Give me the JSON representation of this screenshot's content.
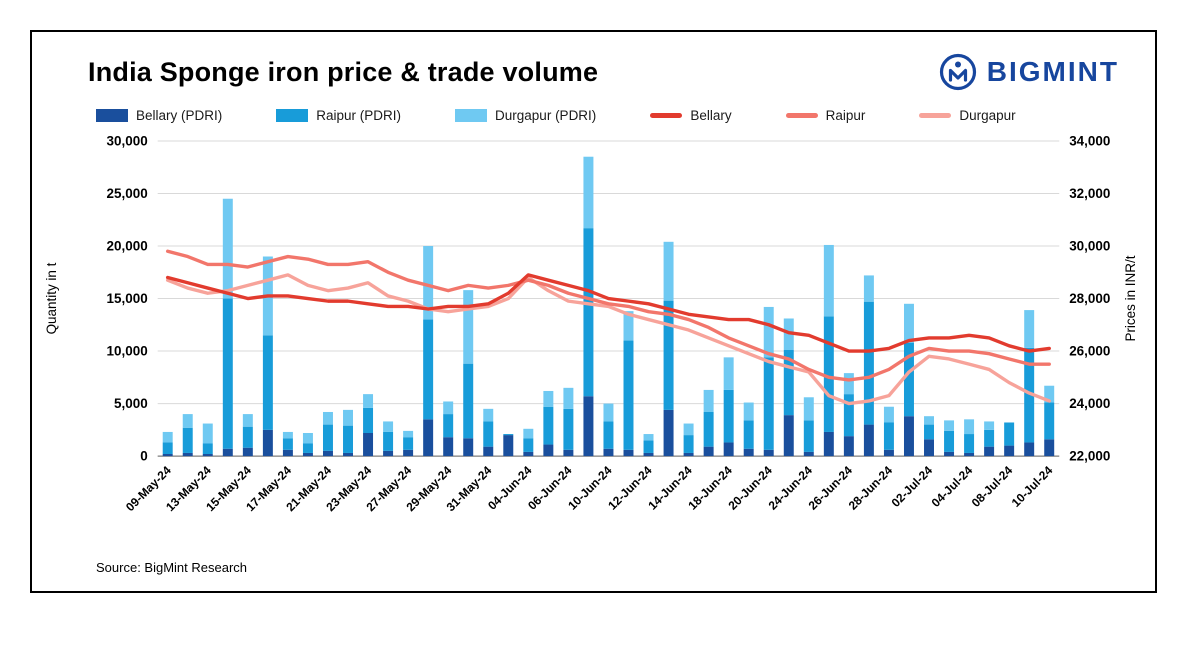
{
  "header": {
    "title": "India Sponge iron price & trade volume",
    "brand": "BIGMINT"
  },
  "source": "Source: BigMint Research",
  "brand_color": "#17469E",
  "chart_data": {
    "type": "combo (stacked bar + line)",
    "title": "India Sponge iron price & trade volume",
    "grid": true,
    "legend_position": "top",
    "categories": [
      "09-May-24",
      "10-May-24",
      "13-May-24",
      "14-May-24",
      "15-May-24",
      "16-May-24",
      "17-May-24",
      "20-May-24",
      "21-May-24",
      "22-May-24",
      "23-May-24",
      "24-May-24",
      "27-May-24",
      "28-May-24",
      "29-May-24",
      "30-May-24",
      "31-May-24",
      "03-Jun-24",
      "04-Jun-24",
      "05-Jun-24",
      "06-Jun-24",
      "07-Jun-24",
      "10-Jun-24",
      "11-Jun-24",
      "12-Jun-24",
      "13-Jun-24",
      "14-Jun-24",
      "17-Jun-24",
      "18-Jun-24",
      "19-Jun-24",
      "20-Jun-24",
      "21-Jun-24",
      "24-Jun-24",
      "25-Jun-24",
      "26-Jun-24",
      "27-Jun-24",
      "28-Jun-24",
      "01-Jul-24",
      "02-Jul-24",
      "03-Jul-24",
      "04-Jul-24",
      "05-Jul-24",
      "08-Jul-24",
      "09-Jul-24",
      "10-Jul-24"
    ],
    "x_tick_labels": [
      "09-May-24",
      "13-May-24",
      "15-May-24",
      "17-May-24",
      "21-May-24",
      "23-May-24",
      "27-May-24",
      "29-May-24",
      "31-May-24",
      "04-Jun-24",
      "06-Jun-24",
      "10-Jun-24",
      "12-Jun-24",
      "14-Jun-24",
      "18-Jun-24",
      "20-Jun-24",
      "24-Jun-24",
      "26-Jun-24",
      "28-Jun-24",
      "02-Jul-24",
      "04-Jul-24",
      "08-Jul-24",
      "10-Jul-24"
    ],
    "left_axis": {
      "label": "Quantity in t",
      "min": 0,
      "max": 30000,
      "step": 5000,
      "ticks": [
        "0",
        "5,000",
        "10,000",
        "15,000",
        "20,000",
        "25,000",
        "30,000"
      ]
    },
    "right_axis": {
      "label": "Prices in INR/t",
      "min": 22000,
      "max": 34000,
      "step": 2000,
      "ticks": [
        "22,000",
        "24,000",
        "26,000",
        "28,000",
        "30,000",
        "32,000",
        "34,000"
      ]
    },
    "bar_series": [
      {
        "name": "Bellary (PDRI)",
        "color": "#1A4F9D",
        "values": [
          200,
          300,
          200,
          700,
          800,
          2500,
          600,
          300,
          500,
          300,
          2200,
          500,
          600,
          3500,
          1800,
          1700,
          900,
          2000,
          400,
          1100,
          600,
          5700,
          700,
          600,
          300,
          4400,
          300,
          900,
          1300,
          700,
          600,
          3900,
          400,
          2300,
          1900,
          3000,
          600,
          3800,
          1600,
          400,
          300,
          900,
          1000,
          1300,
          1600
        ]
      },
      {
        "name": "Raipur (PDRI)",
        "color": "#189CD9",
        "values": [
          1100,
          2400,
          1000,
          14300,
          2000,
          9000,
          1100,
          900,
          2500,
          2600,
          2400,
          1800,
          1200,
          9500,
          2200,
          7100,
          2400,
          100,
          1300,
          3600,
          3900,
          16000,
          2600,
          10400,
          1200,
          10400,
          1700,
          3300,
          5000,
          2700,
          8800,
          6200,
          3000,
          11000,
          4000,
          11700,
          2600,
          7000,
          1400,
          2000,
          1800,
          1600,
          2200,
          9000,
          3500
        ]
      },
      {
        "name": "Durgapur (PDRI)",
        "color": "#6FC9F2",
        "values": [
          1000,
          1300,
          1900,
          9500,
          1200,
          7500,
          600,
          1000,
          1200,
          1500,
          1300,
          1000,
          600,
          7000,
          1200,
          7000,
          1200,
          0,
          900,
          1500,
          2000,
          6800,
          1700,
          2800,
          600,
          5600,
          1100,
          2100,
          3100,
          1700,
          4800,
          3000,
          2200,
          6800,
          2000,
          2500,
          1500,
          3700,
          800,
          1000,
          1400,
          800,
          0,
          3600,
          1600
        ]
      }
    ],
    "line_series": [
      {
        "name": "Bellary",
        "color": "#E23B2E",
        "values": [
          28800,
          28600,
          28400,
          28200,
          28000,
          28100,
          28100,
          28000,
          27900,
          27900,
          27800,
          27700,
          27700,
          27600,
          27700,
          27700,
          27800,
          28200,
          28900,
          28700,
          28500,
          28300,
          28000,
          27900,
          27800,
          27600,
          27400,
          27300,
          27200,
          27200,
          27000,
          26700,
          26600,
          26300,
          26000,
          26000,
          26100,
          26400,
          26500,
          26500,
          26600,
          26500,
          26200,
          26000,
          26100
        ]
      },
      {
        "name": "Raipur",
        "color": "#F2766B",
        "values": [
          29800,
          29600,
          29300,
          29300,
          29200,
          29400,
          29600,
          29500,
          29300,
          29300,
          29400,
          29000,
          28700,
          28500,
          28300,
          28500,
          28400,
          28500,
          28700,
          28500,
          28200,
          28000,
          27800,
          27700,
          27500,
          27400,
          27200,
          26900,
          26500,
          26200,
          25900,
          25700,
          25300,
          25000,
          24900,
          25000,
          25300,
          25800,
          26100,
          26000,
          26000,
          25900,
          25700,
          25500,
          25500
        ]
      },
      {
        "name": "Durgapur",
        "color": "#F7A39A",
        "values": [
          28700,
          28400,
          28200,
          28300,
          28500,
          28700,
          28900,
          28500,
          28300,
          28400,
          28600,
          28100,
          27900,
          27600,
          27500,
          27600,
          27700,
          28000,
          28800,
          28300,
          27900,
          27800,
          27700,
          27400,
          27200,
          27000,
          26800,
          26500,
          26200,
          25900,
          25600,
          25400,
          25200,
          24300,
          24000,
          24100,
          24300,
          25200,
          25800,
          25700,
          25500,
          25300,
          24800,
          24400,
          24100
        ]
      }
    ]
  }
}
